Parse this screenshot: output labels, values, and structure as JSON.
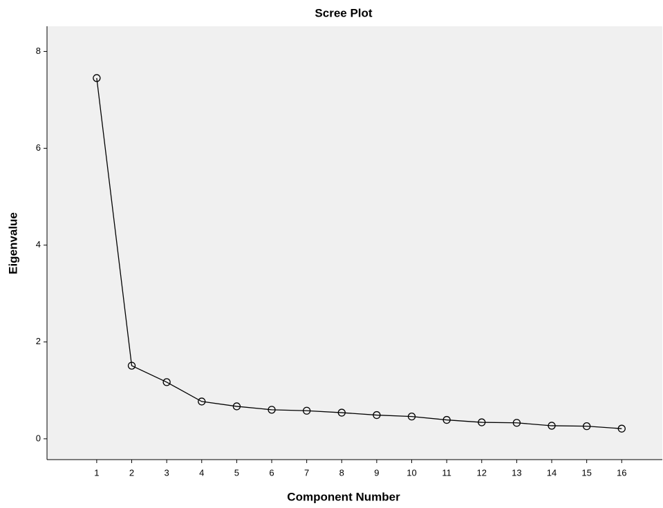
{
  "chart_data": {
    "type": "line",
    "title": "Scree Plot",
    "x_label": "Component Number",
    "y_label": "Eigenvalue",
    "x": [
      1,
      2,
      3,
      4,
      5,
      6,
      7,
      8,
      9,
      10,
      11,
      12,
      13,
      14,
      15,
      16
    ],
    "series": [
      {
        "name": "Eigenvalue",
        "color": "#000000",
        "values": [
          7.45,
          1.51,
          1.17,
          0.77,
          0.67,
          0.6,
          0.58,
          0.54,
          0.49,
          0.46,
          0.39,
          0.34,
          0.33,
          0.27,
          0.26,
          0.21
        ]
      }
    ],
    "xlim": [
      -0.42,
      17.16
    ],
    "xticks": [
      1,
      2,
      3,
      4,
      5,
      6,
      7,
      8,
      9,
      10,
      11,
      12,
      13,
      14,
      15,
      16
    ],
    "ylim": [
      -0.43,
      8.52
    ],
    "yticks": [
      0,
      2,
      4,
      6,
      8
    ],
    "background": "#f0f0f0"
  }
}
